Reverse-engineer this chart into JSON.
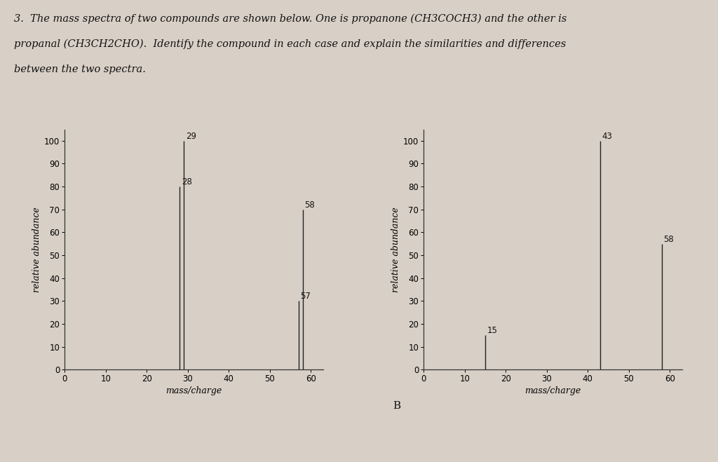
{
  "title_line1": "3.  The mass spectra of two compounds are shown below. One is propanone (CH3COCH3) and the other is",
  "title_line2": "propanal (CH3CH2CHO).  Identify the compound in each case and explain the similarities and differences",
  "title_line3": "between the two spectra.",
  "chart_a": {
    "peaks": [
      {
        "mz": 28,
        "abundance": 80
      },
      {
        "mz": 29,
        "abundance": 100
      },
      {
        "mz": 57,
        "abundance": 30
      },
      {
        "mz": 58,
        "abundance": 70
      }
    ],
    "xlabel": "mass/charge",
    "ylabel": "relative abundance",
    "xlim": [
      0,
      63
    ],
    "ylim": [
      0,
      105
    ],
    "xticks": [
      0,
      10,
      20,
      30,
      40,
      50,
      60
    ],
    "yticks": [
      0,
      10,
      20,
      30,
      40,
      50,
      60,
      70,
      80,
      90,
      100
    ]
  },
  "chart_b": {
    "label": "B",
    "peaks": [
      {
        "mz": 15,
        "abundance": 15
      },
      {
        "mz": 43,
        "abundance": 100
      },
      {
        "mz": 58,
        "abundance": 55
      }
    ],
    "xlabel": "mass/charge",
    "ylabel": "relative abundance",
    "xlim": [
      0,
      63
    ],
    "ylim": [
      0,
      105
    ],
    "xticks": [
      0,
      10,
      20,
      30,
      40,
      50,
      60
    ],
    "yticks": [
      0,
      10,
      20,
      30,
      40,
      50,
      60,
      70,
      80,
      90,
      100
    ]
  },
  "line_color": "#222222",
  "bg_color": "#d8cfc6",
  "text_color": "#111111",
  "annotation_fontsize": 8.5,
  "axis_fontsize": 8.5,
  "label_fontsize": 9,
  "title_fontsize": 10.5
}
